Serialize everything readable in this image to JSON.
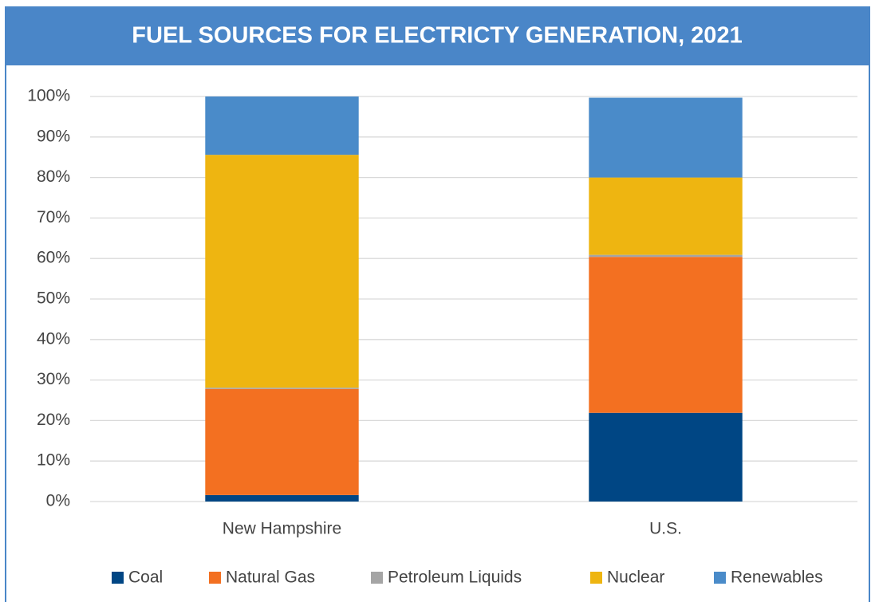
{
  "chart_data": {
    "type": "stacked_bar",
    "title": "FUEL SOURCES FOR ELECTRICTY GENERATION, 2021",
    "categories": [
      "New Hampshire",
      "U.S."
    ],
    "series": [
      {
        "name": "Coal",
        "color": "#004684",
        "values": [
          1.6,
          21.9
        ]
      },
      {
        "name": "Natural Gas",
        "color": "#f37021",
        "values": [
          26.2,
          38.5
        ]
      },
      {
        "name": "Petroleum Liquids",
        "color": "#a5a5a5",
        "values": [
          0.3,
          0.5
        ]
      },
      {
        "name": "Nuclear",
        "color": "#eeb511",
        "values": [
          57.5,
          19.1
        ]
      },
      {
        "name": "Renewables",
        "color": "#4a8bc9",
        "values": [
          14.4,
          19.7
        ]
      }
    ],
    "ylim": [
      0,
      100
    ],
    "yticks": [
      {
        "value": 0,
        "label": "0%"
      },
      {
        "value": 10,
        "label": "10%"
      },
      {
        "value": 20,
        "label": "20%"
      },
      {
        "value": 30,
        "label": "30%"
      },
      {
        "value": 40,
        "label": "40%"
      },
      {
        "value": 50,
        "label": "50%"
      },
      {
        "value": 60,
        "label": "60%"
      },
      {
        "value": 70,
        "label": "70%"
      },
      {
        "value": 80,
        "label": "80%"
      },
      {
        "value": 90,
        "label": "90%"
      },
      {
        "value": 100,
        "label": "100%"
      }
    ],
    "grid": true,
    "legend": "bottom"
  }
}
